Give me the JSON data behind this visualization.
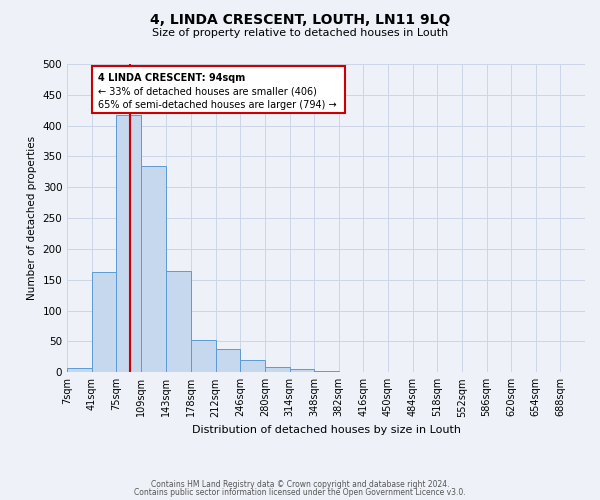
{
  "title": "4, LINDA CRESCENT, LOUTH, LN11 9LQ",
  "subtitle": "Size of property relative to detached houses in Louth",
  "xlabel": "Distribution of detached houses by size in Louth",
  "ylabel": "Number of detached properties",
  "bin_edges": [
    7,
    41,
    75,
    109,
    143,
    178,
    212,
    246,
    280,
    314,
    348,
    382,
    416,
    450,
    484,
    518,
    552,
    586,
    620,
    654,
    688,
    722
  ],
  "bar_heights": [
    7,
    163,
    417,
    335,
    165,
    52,
    37,
    20,
    9,
    5,
    2,
    1,
    0,
    0,
    0,
    0,
    0,
    0,
    0,
    0,
    1
  ],
  "bar_color": "#c5d8ed",
  "bar_edge_color": "#5b9bd5",
  "property_size": 94,
  "red_line_color": "#cc0000",
  "annotation_text_line1": "4 LINDA CRESCENT: 94sqm",
  "annotation_text_line2": "← 33% of detached houses are smaller (406)",
  "annotation_text_line3": "65% of semi-detached houses are larger (794) →",
  "annotation_box_color": "#cc0000",
  "ylim": [
    0,
    500
  ],
  "yticks": [
    0,
    50,
    100,
    150,
    200,
    250,
    300,
    350,
    400,
    450,
    500
  ],
  "grid_color": "#ccd6e8",
  "bg_color": "#eef2f8",
  "footer_line1": "Contains HM Land Registry data © Crown copyright and database right 2024.",
  "footer_line2": "Contains public sector information licensed under the Open Government Licence v3.0."
}
